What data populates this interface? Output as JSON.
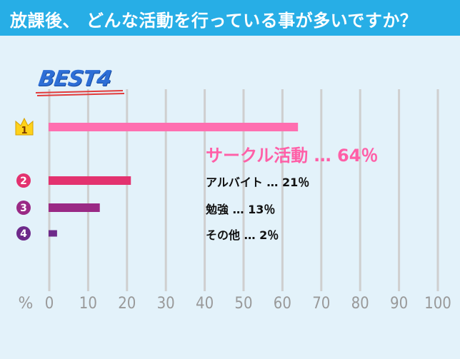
{
  "header": {
    "title": "放課後、 どんな活動を行っている事が多いですか？"
  },
  "badge": {
    "text": "BEST4"
  },
  "colors": {
    "header": "#27aee6",
    "bg": "#e3f2fa",
    "grid": "#cfcfcf",
    "rank1": "#ff6fb0",
    "rank2": "#e3326f",
    "rank3": "#9a2a85",
    "rank4": "#6e2a8a",
    "best": "#2d6ed6"
  },
  "chart_data": {
    "type": "bar",
    "orientation": "horizontal",
    "categories": [
      "サークル活動",
      "アルバイト",
      "勉強",
      "その他"
    ],
    "values": [
      64,
      21,
      13,
      2
    ],
    "ranks": [
      "1",
      "2",
      "3",
      "4"
    ],
    "value_labels": [
      "サークル活動 … 64％",
      "アルバイト … 21％",
      "勉強 … 13％",
      "その他 … 2％"
    ],
    "xlim": [
      0,
      100
    ],
    "xticks": [
      "0",
      "10",
      "20",
      "30",
      "40",
      "50",
      "60",
      "70",
      "80",
      "90",
      "100"
    ],
    "unit_label": "%",
    "grid": true
  }
}
